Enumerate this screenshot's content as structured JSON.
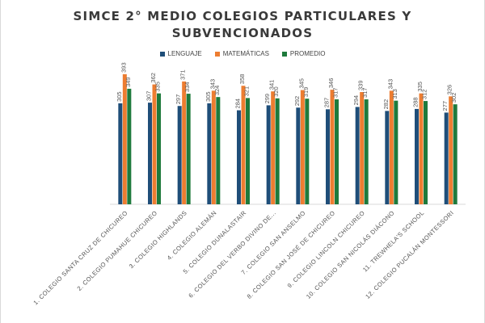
{
  "chart_data": {
    "type": "bar",
    "title_lines": [
      "SIMCE 2° MEDIO COLEGIOS PARTICULARES Y",
      "SUBVENCIONADOS"
    ],
    "legend_position": "top",
    "grid": false,
    "categories": [
      "1. COLEGIO SANTA CRUZ DE CHICUREO",
      "2. COLEGIO PUMAHUE CHICUREO",
      "3. COLEGIO HIGHLANDS",
      "4. COLEGIO ALEMÁN",
      "5. COLEGIO DUNALASTAIR",
      "6. COLEGIO DEL VERBO DIVINO DE...",
      "7. COLEGIO SAN ANSELMO",
      "8. COLEGIO SAN JOSÉ DE CHICUREO",
      "9. COLEGIO LINCOLN CHICUREO",
      "10. COLEGIO SAN NICOLÁS DIÁCONO",
      "11. TREWHELA'S SCHOOL",
      "12. COLEGIO PUCALÁN MONTESSORI"
    ],
    "series": [
      {
        "name": "LENGUAJE",
        "color": "#1f4e79",
        "values": [
          305,
          307,
          297,
          305,
          284,
          299,
          292,
          287,
          294,
          282,
          288,
          277
        ]
      },
      {
        "name": "MATEMÁTICAS",
        "color": "#ed7d31",
        "values": [
          393,
          362,
          371,
          343,
          358,
          341,
          345,
          346,
          339,
          343,
          335,
          326
        ]
      },
      {
        "name": "PROMEDIO",
        "color": "#1e7a3c",
        "values": [
          349,
          335,
          334,
          324,
          321,
          320,
          319,
          317,
          317,
          313,
          312,
          302
        ]
      }
    ],
    "ylim": [
      0,
      400
    ]
  }
}
